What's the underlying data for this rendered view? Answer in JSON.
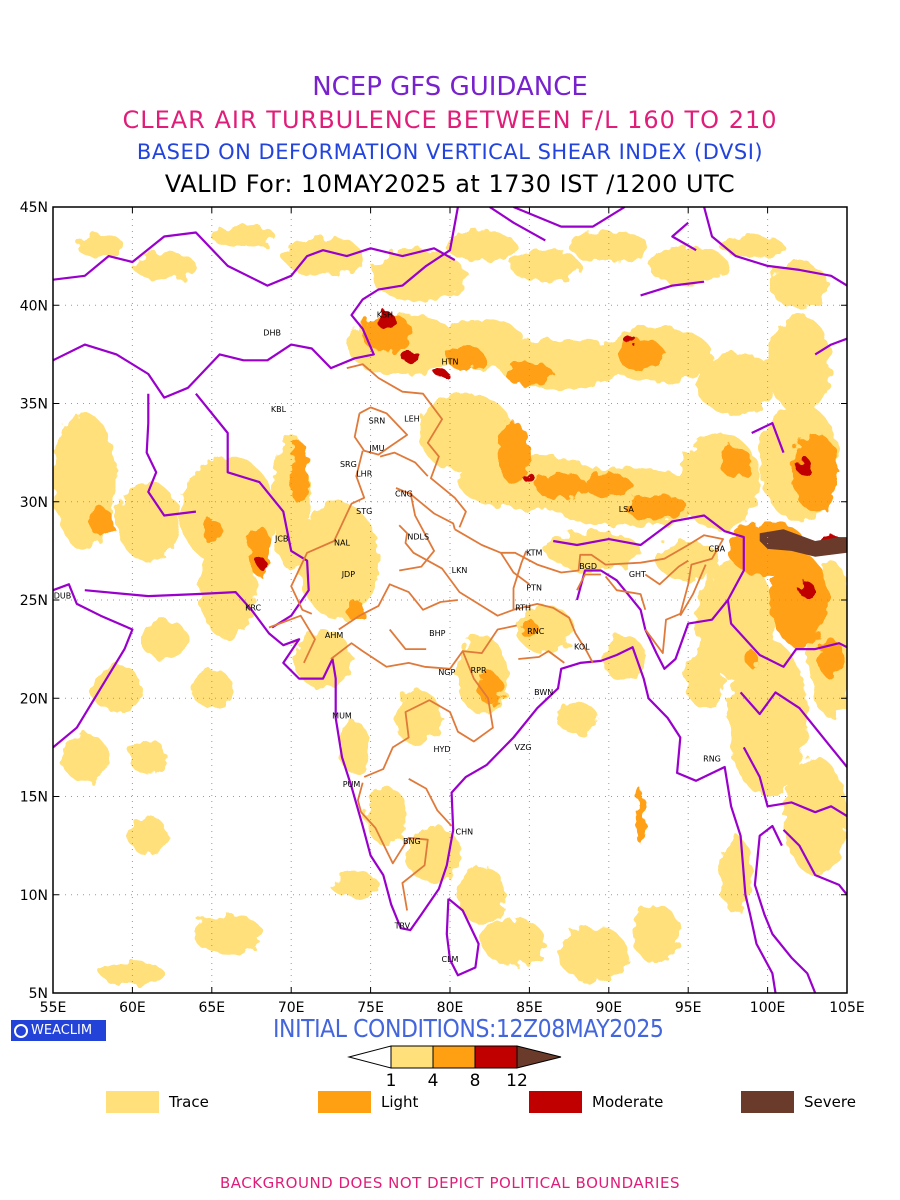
{
  "title": {
    "line1": "NCEP GFS GUIDANCE",
    "line2": "CLEAR AIR TURBULENCE BETWEEN F/L 160 TO 210",
    "line3": "BASED ON DEFORMATION VERTICAL SHEAR INDEX (DVSI)",
    "line4": "VALID For: 10MAY2025 at 1730 IST /1200 UTC"
  },
  "colors": {
    "line1": "#7722cc",
    "line2": "#e01e7a",
    "line3": "#2244dd",
    "line4": "#000000",
    "init": "#4466dd",
    "footer": "#e01e7a",
    "trace": "#ffe07a",
    "light": "#ffa012",
    "moderate": "#c00000",
    "severe": "#6a3a2a",
    "coast": "#9900cc",
    "boundary": "#e07a3a"
  },
  "map": {
    "lon_range": [
      55,
      105
    ],
    "lat_range": [
      5,
      45
    ],
    "x_ticks": [
      "55E",
      "60E",
      "65E",
      "70E",
      "75E",
      "80E",
      "85E",
      "90E",
      "95E",
      "100E",
      "105E"
    ],
    "y_ticks": [
      "5N",
      "10N",
      "15N",
      "20N",
      "25N",
      "30N",
      "35N",
      "40N",
      "45N"
    ],
    "cities": [
      {
        "code": "KSH",
        "lon": 75.9,
        "lat": 39.5
      },
      {
        "code": "DHB",
        "lon": 68.8,
        "lat": 38.6
      },
      {
        "code": "HTN",
        "lon": 80.0,
        "lat": 37.1
      },
      {
        "code": "KBL",
        "lon": 69.2,
        "lat": 34.7
      },
      {
        "code": "SRN",
        "lon": 75.4,
        "lat": 34.1
      },
      {
        "code": "LEH",
        "lon": 77.6,
        "lat": 34.2
      },
      {
        "code": "JMU",
        "lon": 75.4,
        "lat": 32.7
      },
      {
        "code": "SRG",
        "lon": 73.6,
        "lat": 31.9
      },
      {
        "code": "LHR",
        "lon": 74.6,
        "lat": 31.4
      },
      {
        "code": "CNG",
        "lon": 77.1,
        "lat": 30.4
      },
      {
        "code": "LSA",
        "lon": 91.1,
        "lat": 29.6
      },
      {
        "code": "STG",
        "lon": 74.6,
        "lat": 29.5
      },
      {
        "code": "JCB",
        "lon": 69.4,
        "lat": 28.1
      },
      {
        "code": "NDLS",
        "lon": 78.0,
        "lat": 28.2
      },
      {
        "code": "NAL",
        "lon": 73.2,
        "lat": 27.9
      },
      {
        "code": "KTM",
        "lon": 85.3,
        "lat": 27.4
      },
      {
        "code": "CBA",
        "lon": 96.8,
        "lat": 27.6
      },
      {
        "code": "BGD",
        "lon": 88.7,
        "lat": 26.7
      },
      {
        "code": "GHT",
        "lon": 91.8,
        "lat": 26.3
      },
      {
        "code": "LKN",
        "lon": 80.6,
        "lat": 26.5
      },
      {
        "code": "JDP",
        "lon": 73.6,
        "lat": 26.3
      },
      {
        "code": "PTN",
        "lon": 85.3,
        "lat": 25.6
      },
      {
        "code": "DUB",
        "lon": 55.6,
        "lat": 25.2
      },
      {
        "code": "RTH",
        "lon": 84.6,
        "lat": 24.6
      },
      {
        "code": "KRC",
        "lon": 67.6,
        "lat": 24.6
      },
      {
        "code": "BHP",
        "lon": 79.2,
        "lat": 23.3
      },
      {
        "code": "RNC",
        "lon": 85.4,
        "lat": 23.4
      },
      {
        "code": "AHM",
        "lon": 72.7,
        "lat": 23.2
      },
      {
        "code": "KOL",
        "lon": 88.3,
        "lat": 22.6
      },
      {
        "code": "NGP",
        "lon": 79.8,
        "lat": 21.3
      },
      {
        "code": "RPR",
        "lon": 81.8,
        "lat": 21.4
      },
      {
        "code": "BWN",
        "lon": 85.9,
        "lat": 20.3
      },
      {
        "code": "MUM",
        "lon": 73.2,
        "lat": 19.1
      },
      {
        "code": "HYD",
        "lon": 79.5,
        "lat": 17.4
      },
      {
        "code": "VZG",
        "lon": 84.6,
        "lat": 17.5
      },
      {
        "code": "RNG",
        "lon": 96.5,
        "lat": 16.9
      },
      {
        "code": "PUM",
        "lon": 73.8,
        "lat": 15.6
      },
      {
        "code": "CHN",
        "lon": 80.9,
        "lat": 13.2
      },
      {
        "code": "BNG",
        "lon": 77.6,
        "lat": 12.7
      },
      {
        "code": "TRV",
        "lon": 77.0,
        "lat": 8.4
      },
      {
        "code": "CLM",
        "lon": 80.0,
        "lat": 6.7
      }
    ]
  },
  "brand": {
    "label": "WEACLIM"
  },
  "init_label": "INITIAL CONDITIONS:12Z08MAY2025",
  "colorbar": {
    "labels": [
      "1",
      "4",
      "8",
      "12"
    ]
  },
  "legend": [
    {
      "label": "Trace",
      "color_key": "trace"
    },
    {
      "label": "Light",
      "color_key": "light"
    },
    {
      "label": "Moderate",
      "color_key": "moderate"
    },
    {
      "label": "Severe",
      "color_key": "severe"
    }
  ],
  "footer": "BACKGROUND DOES NOT DEPICT POLITICAL BOUNDARIES"
}
